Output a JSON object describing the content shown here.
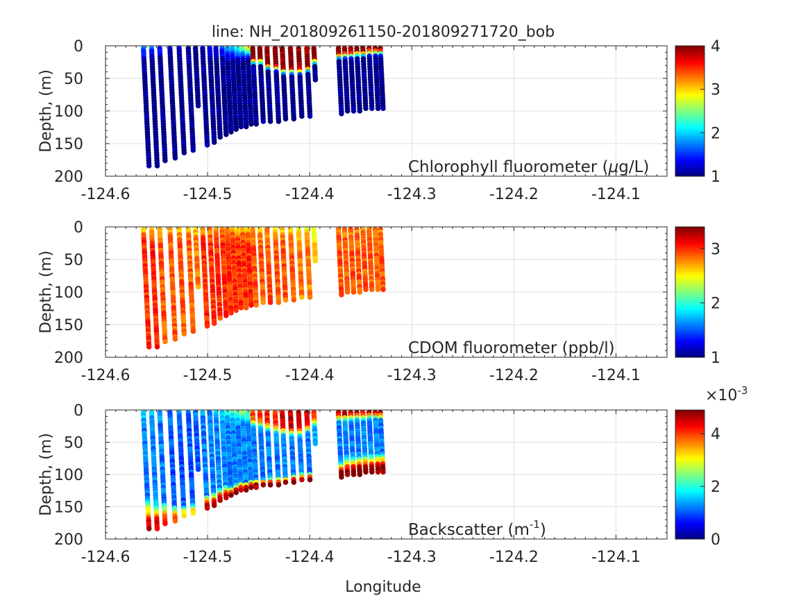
{
  "figure": {
    "title": "line: NH_201809261150-201809271720_bob",
    "xlabel": "Longitude"
  },
  "chart_data": [
    {
      "type": "scatter",
      "panel": "chlorophyll",
      "ylabel": "Depth, (m)",
      "annotation_html": "Chlorophyll fluorometer (<tspan font-style='italic'>μ</tspan>g/L)",
      "annotation": "Chlorophyll fluorometer (μg/L)",
      "xlim": [
        -124.6,
        -124.05
      ],
      "ylim": [
        0,
        200
      ],
      "y_reversed": true,
      "xticks": [
        -124.6,
        -124.5,
        -124.4,
        -124.3,
        -124.2,
        -124.1
      ],
      "xtick_labels": [
        "-124.6",
        "-124.5",
        "-124.4",
        "-124.3",
        "-124.2",
        "-124.1"
      ],
      "yticks": [
        0,
        50,
        100,
        150,
        200
      ],
      "ytick_labels": [
        "0",
        "50",
        "100",
        "150",
        "200"
      ],
      "grid": true,
      "colormap": "jet",
      "clim": [
        1,
        4
      ],
      "colorbar_ticks": [
        1,
        2,
        3,
        4
      ],
      "colorbar_tick_labels": [
        "1",
        "2",
        "3",
        "4"
      ],
      "colorbar_exponent": "",
      "profiles": [
        {
          "lon": -124.563,
          "max_depth": 186,
          "surface": 1.8,
          "deep": 1.0
        },
        {
          "lon": -124.555,
          "max_depth": 186,
          "surface": 1.8,
          "deep": 1.0
        },
        {
          "lon": -124.547,
          "max_depth": 177,
          "surface": 1.5,
          "deep": 1.0
        },
        {
          "lon": -124.537,
          "max_depth": 172,
          "surface": 1.2,
          "deep": 1.0
        },
        {
          "lon": -124.528,
          "max_depth": 167,
          "surface": 1.2,
          "deep": 1.0
        },
        {
          "lon": -124.519,
          "max_depth": 160,
          "surface": 1.0,
          "deep": 1.0
        },
        {
          "lon": -124.512,
          "max_depth": 95,
          "surface": 1.0,
          "deep": 1.0
        },
        {
          "lon": -124.505,
          "max_depth": 152,
          "surface": 1.2,
          "deep": 1.0
        },
        {
          "lon": -124.498,
          "max_depth": 148,
          "surface": 1.3,
          "deep": 1.0
        },
        {
          "lon": -124.492,
          "max_depth": 142,
          "surface": 1.5,
          "deep": 1.0
        },
        {
          "lon": -124.486,
          "max_depth": 138,
          "surface": 1.8,
          "deep": 1.0
        },
        {
          "lon": -124.481,
          "max_depth": 134,
          "surface": 2.0,
          "deep": 1.0
        },
        {
          "lon": -124.476,
          "max_depth": 130,
          "surface": 2.2,
          "deep": 1.0
        },
        {
          "lon": -124.471,
          "max_depth": 127,
          "surface": 2.5,
          "deep": 1.0
        },
        {
          "lon": -124.466,
          "max_depth": 124,
          "surface": 2.8,
          "deep": 1.0
        },
        {
          "lon": -124.461,
          "max_depth": 121,
          "surface": 3.0,
          "deep": 1.0
        },
        {
          "lon": -124.456,
          "max_depth": 120,
          "surface": 4.0,
          "deep": 1.0,
          "mixed_depth": 20
        },
        {
          "lon": -124.449,
          "max_depth": 119,
          "surface": 4.0,
          "deep": 1.0,
          "mixed_depth": 20
        },
        {
          "lon": -124.442,
          "max_depth": 118,
          "surface": 4.0,
          "deep": 1.0,
          "mixed_depth": 28
        },
        {
          "lon": -124.434,
          "max_depth": 117,
          "surface": 4.0,
          "deep": 1.0,
          "mixed_depth": 30
        },
        {
          "lon": -124.427,
          "max_depth": 115,
          "surface": 4.0,
          "deep": 1.0,
          "mixed_depth": 35
        },
        {
          "lon": -124.419,
          "max_depth": 113,
          "surface": 4.0,
          "deep": 1.0,
          "mixed_depth": 35
        },
        {
          "lon": -124.411,
          "max_depth": 110,
          "surface": 4.0,
          "deep": 1.0,
          "mixed_depth": 35
        },
        {
          "lon": -124.403,
          "max_depth": 108,
          "surface": 4.0,
          "deep": 1.0,
          "mixed_depth": 32
        },
        {
          "lon": -124.396,
          "max_depth": 55,
          "surface": 4.0,
          "deep": 1.0,
          "mixed_depth": 20
        },
        {
          "lon": -124.372,
          "max_depth": 105,
          "surface": 4.0,
          "deep": 1.0,
          "mixed_depth": 12
        },
        {
          "lon": -124.366,
          "max_depth": 103,
          "surface": 4.0,
          "deep": 1.0,
          "mixed_depth": 10
        },
        {
          "lon": -124.36,
          "max_depth": 101,
          "surface": 4.0,
          "deep": 1.0,
          "mixed_depth": 10
        },
        {
          "lon": -124.354,
          "max_depth": 100,
          "surface": 4.0,
          "deep": 1.0,
          "mixed_depth": 8
        },
        {
          "lon": -124.348,
          "max_depth": 99,
          "surface": 4.0,
          "deep": 1.0,
          "mixed_depth": 8
        },
        {
          "lon": -124.342,
          "max_depth": 98,
          "surface": 4.0,
          "deep": 1.0,
          "mixed_depth": 6
        },
        {
          "lon": -124.336,
          "max_depth": 97,
          "surface": 4.0,
          "deep": 1.0,
          "mixed_depth": 6
        },
        {
          "lon": -124.331,
          "max_depth": 96,
          "surface": 4.0,
          "deep": 1.0,
          "mixed_depth": 6
        }
      ]
    },
    {
      "type": "scatter",
      "panel": "cdom",
      "ylabel": "Depth, (m)",
      "annotation": "CDOM fluorometer (ppb/l)",
      "xlim": [
        -124.6,
        -124.05
      ],
      "ylim": [
        0,
        200
      ],
      "y_reversed": true,
      "xticks": [
        -124.6,
        -124.5,
        -124.4,
        -124.3,
        -124.2,
        -124.1
      ],
      "xtick_labels": [
        "-124.6",
        "-124.5",
        "-124.4",
        "-124.3",
        "-124.2",
        "-124.1"
      ],
      "yticks": [
        0,
        50,
        100,
        150,
        200
      ],
      "ytick_labels": [
        "0",
        "50",
        "100",
        "150",
        "200"
      ],
      "grid": true,
      "colormap": "jet",
      "clim": [
        1,
        3.4
      ],
      "colorbar_ticks": [
        1,
        2,
        3
      ],
      "colorbar_tick_labels": [
        "1",
        "2",
        "3"
      ],
      "colorbar_exponent": "",
      "profiles": [
        {
          "lon": -124.563,
          "max_depth": 186,
          "surface": 2.6,
          "deep": 3.0
        },
        {
          "lon": -124.555,
          "max_depth": 186,
          "surface": 2.7,
          "deep": 3.0
        },
        {
          "lon": -124.547,
          "max_depth": 177,
          "surface": 2.6,
          "deep": 2.9
        },
        {
          "lon": -124.537,
          "max_depth": 172,
          "surface": 2.7,
          "deep": 2.9
        },
        {
          "lon": -124.528,
          "max_depth": 167,
          "surface": 2.6,
          "deep": 2.9
        },
        {
          "lon": -124.519,
          "max_depth": 160,
          "surface": 2.7,
          "deep": 2.9
        },
        {
          "lon": -124.512,
          "max_depth": 95,
          "surface": 2.6,
          "deep": 2.8
        },
        {
          "lon": -124.505,
          "max_depth": 152,
          "surface": 2.6,
          "deep": 3.0
        },
        {
          "lon": -124.498,
          "max_depth": 148,
          "surface": 2.7,
          "deep": 3.0
        },
        {
          "lon": -124.492,
          "max_depth": 142,
          "surface": 2.6,
          "deep": 3.0
        },
        {
          "lon": -124.486,
          "max_depth": 138,
          "surface": 2.7,
          "deep": 3.0
        },
        {
          "lon": -124.481,
          "max_depth": 134,
          "surface": 2.6,
          "deep": 3.0
        },
        {
          "lon": -124.476,
          "max_depth": 130,
          "surface": 2.7,
          "deep": 3.0
        },
        {
          "lon": -124.471,
          "max_depth": 127,
          "surface": 2.6,
          "deep": 3.0
        },
        {
          "lon": -124.466,
          "max_depth": 124,
          "surface": 2.7,
          "deep": 3.0
        },
        {
          "lon": -124.461,
          "max_depth": 121,
          "surface": 2.6,
          "deep": 3.0
        },
        {
          "lon": -124.456,
          "max_depth": 120,
          "surface": 2.7,
          "deep": 2.9
        },
        {
          "lon": -124.449,
          "max_depth": 119,
          "surface": 2.6,
          "deep": 2.9
        },
        {
          "lon": -124.442,
          "max_depth": 118,
          "surface": 2.7,
          "deep": 2.9
        },
        {
          "lon": -124.434,
          "max_depth": 117,
          "surface": 2.6,
          "deep": 2.9
        },
        {
          "lon": -124.427,
          "max_depth": 115,
          "surface": 2.6,
          "deep": 2.9
        },
        {
          "lon": -124.419,
          "max_depth": 113,
          "surface": 2.6,
          "deep": 2.9
        },
        {
          "lon": -124.411,
          "max_depth": 110,
          "surface": 2.5,
          "deep": 2.8
        },
        {
          "lon": -124.403,
          "max_depth": 108,
          "surface": 2.5,
          "deep": 2.8
        },
        {
          "lon": -124.396,
          "max_depth": 55,
          "surface": 2.4,
          "deep": 2.6
        },
        {
          "lon": -124.372,
          "max_depth": 105,
          "surface": 2.8,
          "deep": 2.9
        },
        {
          "lon": -124.366,
          "max_depth": 103,
          "surface": 2.8,
          "deep": 2.9
        },
        {
          "lon": -124.36,
          "max_depth": 101,
          "surface": 2.8,
          "deep": 2.9
        },
        {
          "lon": -124.354,
          "max_depth": 100,
          "surface": 2.8,
          "deep": 2.9
        },
        {
          "lon": -124.348,
          "max_depth": 99,
          "surface": 2.8,
          "deep": 2.9
        },
        {
          "lon": -124.342,
          "max_depth": 98,
          "surface": 2.8,
          "deep": 2.9
        },
        {
          "lon": -124.336,
          "max_depth": 97,
          "surface": 2.8,
          "deep": 2.9
        },
        {
          "lon": -124.331,
          "max_depth": 96,
          "surface": 2.8,
          "deep": 2.9
        }
      ]
    },
    {
      "type": "scatter",
      "panel": "backscatter",
      "ylabel": "Depth, (m)",
      "annotation": "Backscatter (m",
      "annotation_sup": "-1",
      "annotation_end": ")",
      "xlim": [
        -124.6,
        -124.05
      ],
      "ylim": [
        0,
        200
      ],
      "y_reversed": true,
      "xticks": [
        -124.6,
        -124.5,
        -124.4,
        -124.3,
        -124.2,
        -124.1
      ],
      "xtick_labels": [
        "-124.6",
        "-124.5",
        "-124.4",
        "-124.3",
        "-124.2",
        "-124.1"
      ],
      "yticks": [
        0,
        50,
        100,
        150,
        200
      ],
      "ytick_labels": [
        "0",
        "50",
        "100",
        "150",
        "200"
      ],
      "grid": true,
      "colormap": "jet",
      "clim": [
        0,
        0.0049
      ],
      "colorbar_ticks": [
        0,
        0.002,
        0.004
      ],
      "colorbar_tick_labels": [
        "0",
        "2",
        "4"
      ],
      "colorbar_exponent": "×10",
      "colorbar_exponent_sup": "-3",
      "profiles": [
        {
          "lon": -124.563,
          "max_depth": 186,
          "surface": 0.0018,
          "deep": 0.0012,
          "bottom_layer": 50,
          "bottom_value": 0.0045
        },
        {
          "lon": -124.555,
          "max_depth": 186,
          "surface": 0.0018,
          "deep": 0.0012,
          "bottom_layer": 45,
          "bottom_value": 0.0045
        },
        {
          "lon": -124.547,
          "max_depth": 177,
          "surface": 0.0015,
          "deep": 0.0012,
          "bottom_layer": 35,
          "bottom_value": 0.004
        },
        {
          "lon": -124.537,
          "max_depth": 172,
          "surface": 0.0012,
          "deep": 0.001,
          "bottom_layer": 25,
          "bottom_value": 0.004
        },
        {
          "lon": -124.528,
          "max_depth": 167,
          "surface": 0.0012,
          "deep": 0.001,
          "bottom_layer": 20,
          "bottom_value": 0.0035
        },
        {
          "lon": -124.519,
          "max_depth": 160,
          "surface": 0.0012,
          "deep": 0.001,
          "bottom_layer": 15,
          "bottom_value": 0.003
        },
        {
          "lon": -124.512,
          "max_depth": 95,
          "surface": 0.0012,
          "deep": 0.001
        },
        {
          "lon": -124.505,
          "max_depth": 152,
          "surface": 0.0014,
          "deep": 0.0012,
          "bottom_layer": 20,
          "bottom_value": 0.0045
        },
        {
          "lon": -124.498,
          "max_depth": 148,
          "surface": 0.0014,
          "deep": 0.0012,
          "bottom_layer": 20,
          "bottom_value": 0.0045
        },
        {
          "lon": -124.492,
          "max_depth": 142,
          "surface": 0.0016,
          "deep": 0.0012,
          "bottom_layer": 20,
          "bottom_value": 0.0048
        },
        {
          "lon": -124.486,
          "max_depth": 138,
          "surface": 0.0018,
          "deep": 0.0012,
          "bottom_layer": 20,
          "bottom_value": 0.0048
        },
        {
          "lon": -124.481,
          "max_depth": 134,
          "surface": 0.002,
          "deep": 0.0012,
          "bottom_layer": 15,
          "bottom_value": 0.0048
        },
        {
          "lon": -124.476,
          "max_depth": 130,
          "surface": 0.0022,
          "deep": 0.0012,
          "bottom_layer": 15,
          "bottom_value": 0.0048
        },
        {
          "lon": -124.471,
          "max_depth": 127,
          "surface": 0.0024,
          "deep": 0.0012,
          "bottom_layer": 15,
          "bottom_value": 0.0048
        },
        {
          "lon": -124.466,
          "max_depth": 124,
          "surface": 0.0026,
          "deep": 0.0012,
          "bottom_layer": 12,
          "bottom_value": 0.0048
        },
        {
          "lon": -124.461,
          "max_depth": 121,
          "surface": 0.0028,
          "deep": 0.0012,
          "bottom_layer": 12,
          "bottom_value": 0.0048
        },
        {
          "lon": -124.456,
          "max_depth": 120,
          "surface": 0.004,
          "deep": 0.0012,
          "mixed_depth": 15,
          "bottom_layer": 12,
          "bottom_value": 0.0048
        },
        {
          "lon": -124.449,
          "max_depth": 119,
          "surface": 0.004,
          "deep": 0.0012,
          "mixed_depth": 18,
          "bottom_layer": 12,
          "bottom_value": 0.0048
        },
        {
          "lon": -124.442,
          "max_depth": 118,
          "surface": 0.0042,
          "deep": 0.0012,
          "mixed_depth": 22,
          "bottom_layer": 12,
          "bottom_value": 0.0048
        },
        {
          "lon": -124.434,
          "max_depth": 117,
          "surface": 0.0042,
          "deep": 0.0012,
          "mixed_depth": 25,
          "bottom_layer": 12,
          "bottom_value": 0.0048
        },
        {
          "lon": -124.427,
          "max_depth": 115,
          "surface": 0.0045,
          "deep": 0.0012,
          "mixed_depth": 28,
          "bottom_layer": 12,
          "bottom_value": 0.0048
        },
        {
          "lon": -124.419,
          "max_depth": 113,
          "surface": 0.0045,
          "deep": 0.0012,
          "mixed_depth": 30,
          "bottom_layer": 12,
          "bottom_value": 0.0048
        },
        {
          "lon": -124.411,
          "max_depth": 110,
          "surface": 0.0045,
          "deep": 0.0012,
          "mixed_depth": 30,
          "bottom_layer": 12,
          "bottom_value": 0.0048
        },
        {
          "lon": -124.403,
          "max_depth": 108,
          "surface": 0.0045,
          "deep": 0.0012,
          "mixed_depth": 25,
          "bottom_layer": 10,
          "bottom_value": 0.0048
        },
        {
          "lon": -124.396,
          "max_depth": 55,
          "surface": 0.004,
          "deep": 0.0015,
          "mixed_depth": 15
        },
        {
          "lon": -124.372,
          "max_depth": 105,
          "surface": 0.0045,
          "deep": 0.0012,
          "mixed_depth": 8,
          "bottom_layer": 25,
          "bottom_value": 0.0049
        },
        {
          "lon": -124.366,
          "max_depth": 103,
          "surface": 0.0045,
          "deep": 0.0012,
          "mixed_depth": 8,
          "bottom_layer": 30,
          "bottom_value": 0.0049
        },
        {
          "lon": -124.36,
          "max_depth": 101,
          "surface": 0.0045,
          "deep": 0.0012,
          "mixed_depth": 6,
          "bottom_layer": 30,
          "bottom_value": 0.0049
        },
        {
          "lon": -124.354,
          "max_depth": 100,
          "surface": 0.0045,
          "deep": 0.0012,
          "mixed_depth": 6,
          "bottom_layer": 30,
          "bottom_value": 0.0049
        },
        {
          "lon": -124.348,
          "max_depth": 99,
          "surface": 0.0045,
          "deep": 0.0012,
          "mixed_depth": 6,
          "bottom_layer": 30,
          "bottom_value": 0.0049
        },
        {
          "lon": -124.342,
          "max_depth": 98,
          "surface": 0.0045,
          "deep": 0.0012,
          "mixed_depth": 5,
          "bottom_layer": 30,
          "bottom_value": 0.0049
        },
        {
          "lon": -124.336,
          "max_depth": 97,
          "surface": 0.0045,
          "deep": 0.0012,
          "mixed_depth": 5,
          "bottom_layer": 30,
          "bottom_value": 0.0049
        },
        {
          "lon": -124.331,
          "max_depth": 96,
          "surface": 0.0045,
          "deep": 0.0012,
          "mixed_depth": 5,
          "bottom_layer": 30,
          "bottom_value": 0.0049
        }
      ]
    }
  ]
}
